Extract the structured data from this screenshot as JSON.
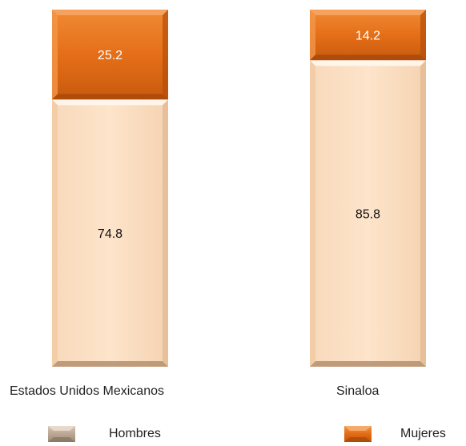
{
  "chart_data": {
    "type": "bar",
    "stacked": true,
    "percent_stacked": true,
    "categories": [
      "Estados Unidos Mexicanos",
      "Sinaloa"
    ],
    "series": [
      {
        "name": "Hombres",
        "values": [
          74.8,
          85.8
        ],
        "color": "#FCE2C6"
      },
      {
        "name": "Mujeres",
        "values": [
          25.2,
          14.2
        ],
        "color": "#E8731C"
      }
    ],
    "ylim": [
      0,
      100
    ],
    "grid": false,
    "legend_position": "bottom"
  }
}
